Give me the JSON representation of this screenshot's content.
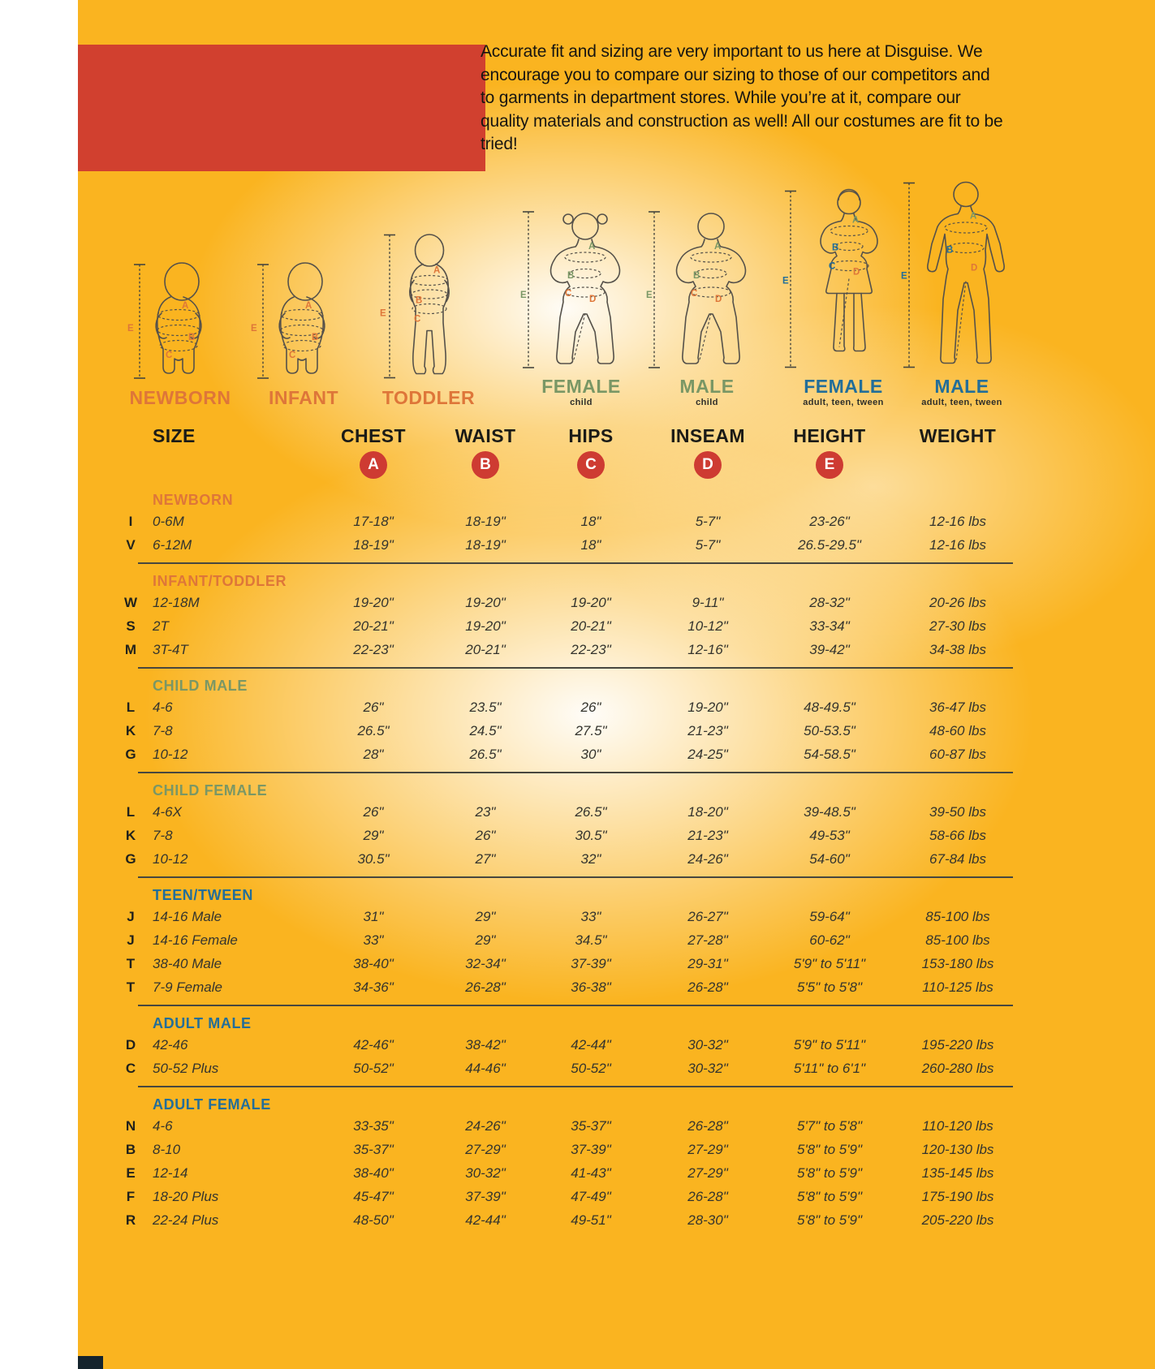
{
  "intro": {
    "text": "Accurate fit and sizing are very important to us here at Disguise. We encourage you to compare our sizing to those of our competitors and to garments in department stores. While you’re at it, compare our quality materials and construction as well! All our costumes are fit to be tried!"
  },
  "colors": {
    "background": "#FAB420",
    "red_block": "#D1402F",
    "badge_red": "#CE3B32",
    "orange": "#DE7639",
    "green": "#7A9765",
    "blue": "#236E99"
  },
  "measure_badges": [
    "A",
    "B",
    "C",
    "D",
    "E"
  ],
  "figures": [
    {
      "label": "NEWBORN",
      "sublabel": "",
      "group": "orange",
      "type": "baby",
      "letters": [
        "A",
        "B",
        "C",
        "E"
      ]
    },
    {
      "label": "INFANT",
      "sublabel": "",
      "group": "orange",
      "type": "baby",
      "letters": [
        "A",
        "B",
        "C",
        "E"
      ]
    },
    {
      "label": "TODDLER",
      "sublabel": "",
      "group": "orange",
      "type": "toddler",
      "letters": [
        "A",
        "B",
        "C",
        "E"
      ]
    },
    {
      "label": "FEMALE",
      "sublabel": "child",
      "group": "green",
      "type": "child-female",
      "letters": [
        "A",
        "B",
        "C",
        "D",
        "E"
      ]
    },
    {
      "label": "MALE",
      "sublabel": "child",
      "group": "green",
      "type": "child-male",
      "letters": [
        "A",
        "B",
        "C",
        "D",
        "E"
      ]
    },
    {
      "label": "FEMALE",
      "sublabel": "adult, teen, tween",
      "group": "blue",
      "type": "adult-female",
      "letters": [
        "A",
        "B",
        "C",
        "D",
        "E"
      ]
    },
    {
      "label": "MALE",
      "sublabel": "adult, teen, tween",
      "group": "blue",
      "type": "adult-male",
      "letters": [
        "A",
        "B",
        "D",
        "E"
      ]
    }
  ],
  "table": {
    "columns": [
      "SIZE",
      "CHEST",
      "WAIST",
      "HIPS",
      "INSEAM",
      "HEIGHT",
      "WEIGHT"
    ],
    "sections": [
      {
        "name": "NEWBORN",
        "group": "orange",
        "rows": [
          [
            "I",
            "0-6M",
            "17-18\"",
            "18-19\"",
            "18\"",
            "5-7\"",
            "23-26\"",
            "12-16 lbs"
          ],
          [
            "V",
            "6-12M",
            "18-19\"",
            "18-19\"",
            "18\"",
            "5-7\"",
            "26.5-29.5\"",
            "12-16 lbs"
          ]
        ]
      },
      {
        "name": "INFANT/TODDLER",
        "group": "orange",
        "rows": [
          [
            "W",
            "12-18M",
            "19-20\"",
            "19-20\"",
            "19-20\"",
            "9-11\"",
            "28-32\"",
            "20-26 lbs"
          ],
          [
            "S",
            "2T",
            "20-21\"",
            "19-20\"",
            "20-21\"",
            "10-12\"",
            "33-34\"",
            "27-30 lbs"
          ],
          [
            "M",
            "3T-4T",
            "22-23\"",
            "20-21\"",
            "22-23\"",
            "12-16\"",
            "39-42\"",
            "34-38 lbs"
          ]
        ]
      },
      {
        "name": "CHILD MALE",
        "group": "green",
        "rows": [
          [
            "L",
            "4-6",
            "26\"",
            "23.5\"",
            "26\"",
            "19-20\"",
            "48-49.5\"",
            "36-47 lbs"
          ],
          [
            "K",
            "7-8",
            "26.5\"",
            "24.5\"",
            "27.5\"",
            "21-23\"",
            "50-53.5\"",
            "48-60 lbs"
          ],
          [
            "G",
            "10-12",
            "28\"",
            "26.5\"",
            "30\"",
            "24-25\"",
            "54-58.5\"",
            "60-87 lbs"
          ]
        ]
      },
      {
        "name": "CHILD FEMALE",
        "group": "green",
        "rows": [
          [
            "L",
            "4-6X",
            "26\"",
            "23\"",
            "26.5\"",
            "18-20\"",
            "39-48.5\"",
            "39-50 lbs"
          ],
          [
            "K",
            "7-8",
            "29\"",
            "26\"",
            "30.5\"",
            "21-23\"",
            "49-53\"",
            "58-66 lbs"
          ],
          [
            "G",
            "10-12",
            "30.5\"",
            "27\"",
            "32\"",
            "24-26\"",
            "54-60\"",
            "67-84 lbs"
          ]
        ]
      },
      {
        "name": "TEEN/TWEEN",
        "group": "blue",
        "rows": [
          [
            "J",
            "14-16 Male",
            "31\"",
            "29\"",
            "33\"",
            "26-27\"",
            "59-64\"",
            "85-100 lbs"
          ],
          [
            "J",
            "14-16 Female",
            "33\"",
            "29\"",
            "34.5\"",
            "27-28\"",
            "60-62\"",
            "85-100 lbs"
          ],
          [
            "T",
            "38-40 Male",
            "38-40\"",
            "32-34\"",
            "37-39\"",
            "29-31\"",
            "5'9\" to 5'11\"",
            "153-180 lbs"
          ],
          [
            "T",
            "7-9 Female",
            "34-36\"",
            "26-28\"",
            "36-38\"",
            "26-28\"",
            "5'5\" to 5'8\"",
            "110-125 lbs"
          ]
        ]
      },
      {
        "name": "ADULT MALE",
        "group": "blue",
        "rows": [
          [
            "D",
            "42-46",
            "42-46\"",
            "38-42\"",
            "42-44\"",
            "30-32\"",
            "5'9\" to 5'11\"",
            "195-220 lbs"
          ],
          [
            "C",
            "50-52 Plus",
            "50-52\"",
            "44-46\"",
            "50-52\"",
            "30-32\"",
            "5'11\" to 6'1\"",
            "260-280 lbs"
          ]
        ]
      },
      {
        "name": "ADULT FEMALE",
        "group": "blue",
        "rows": [
          [
            "N",
            "4-6",
            "33-35\"",
            "24-26\"",
            "35-37\"",
            "26-28\"",
            "5'7\" to 5'8\"",
            "110-120 lbs"
          ],
          [
            "B",
            "8-10",
            "35-37\"",
            "27-29\"",
            "37-39\"",
            "27-29\"",
            "5'8\" to 5'9\"",
            "120-130 lbs"
          ],
          [
            "E",
            "12-14",
            "38-40\"",
            "30-32\"",
            "41-43\"",
            "27-29\"",
            "5'8\" to 5'9\"",
            "135-145 lbs"
          ],
          [
            "F",
            "18-20 Plus",
            "45-47\"",
            "37-39\"",
            "47-49\"",
            "26-28\"",
            "5'8\" to 5'9\"",
            "175-190 lbs"
          ],
          [
            "R",
            "22-24 Plus",
            "48-50\"",
            "42-44\"",
            "49-51\"",
            "28-30\"",
            "5'8\" to 5'9\"",
            "205-220 lbs"
          ]
        ]
      }
    ]
  }
}
